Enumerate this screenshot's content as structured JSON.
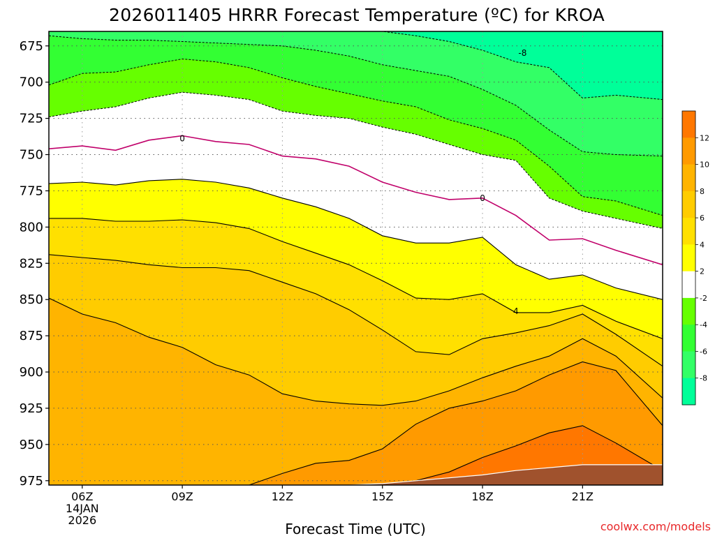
{
  "chart_data": {
    "type": "contour",
    "title": "2026011405 HRRR Forecast Temperature (ºC) for KROA",
    "xlabel": "Forecast Time (UTC)",
    "ylabel": "",
    "credit": "coolwx.com/models",
    "x_range_hours": [
      5.0,
      23.4
    ],
    "y_range_hpa": [
      665,
      978
    ],
    "y_ticks": [
      675,
      700,
      725,
      750,
      775,
      800,
      825,
      850,
      875,
      900,
      925,
      950,
      975
    ],
    "x_ticks": [
      {
        "hour": 6,
        "label": "06Z",
        "date": "14JAN",
        "year": "2026"
      },
      {
        "hour": 9,
        "label": "09Z"
      },
      {
        "hour": 12,
        "label": "12Z"
      },
      {
        "hour": 15,
        "label": "15Z"
      },
      {
        "hour": 18,
        "label": "18Z"
      },
      {
        "hour": 21,
        "label": "21Z"
      }
    ],
    "times": [
      5,
      6,
      7,
      8,
      9,
      10,
      11,
      12,
      13,
      14,
      15,
      16,
      17,
      18,
      19,
      20,
      21,
      22,
      23.4
    ],
    "bands": [
      {
        "range": "-10 to -8",
        "color": "#00ff99"
      },
      {
        "range": "-8 to -6",
        "color": "#33ff66"
      },
      {
        "range": "-6 to -4",
        "color": "#33ff33"
      },
      {
        "range": "-4 to -2",
        "color": "#66ff00"
      },
      {
        "range": "-2 to 2",
        "color": "#ffffff"
      },
      {
        "range": "2 to 4",
        "color": "#ffff00"
      },
      {
        "range": "4 to 6",
        "color": "#ffe000"
      },
      {
        "range": "6 to 8",
        "color": "#ffcc00"
      },
      {
        "range": "8 to 10",
        "color": "#ffb400"
      },
      {
        "range": "10 to 12",
        "color": "#ff9a00"
      },
      {
        "range": "12 to 14",
        "color": "#ff7700"
      }
    ],
    "isotherms_hpa": {
      "-8": [
        655,
        655,
        655,
        655,
        655,
        655,
        655,
        655,
        655,
        660,
        665,
        668,
        672,
        678,
        686,
        690,
        711,
        709,
        712
      ],
      "-6": [
        668,
        670,
        671,
        671,
        672,
        673,
        674,
        675,
        678,
        682,
        688,
        692,
        696,
        705,
        716,
        733,
        748,
        750,
        751
      ],
      "-4": [
        702,
        694,
        693,
        688,
        684,
        686,
        690,
        697,
        703,
        708,
        713,
        717,
        726,
        732,
        740,
        758,
        779,
        782,
        792
      ],
      "-2": [
        724,
        720,
        717,
        711,
        707,
        709,
        712,
        720,
        723,
        725,
        731,
        736,
        743,
        750,
        754,
        780,
        789,
        794,
        801
      ],
      "0": [
        746,
        744,
        747,
        740,
        737,
        741,
        743,
        751,
        753,
        758,
        769,
        776,
        781,
        780,
        792,
        809,
        808,
        816,
        826
      ],
      "2": [
        770,
        769,
        771,
        768,
        767,
        769,
        773,
        780,
        786,
        794,
        806,
        811,
        811,
        807,
        826,
        836,
        833,
        842,
        850
      ],
      "4": [
        794,
        794,
        796,
        796,
        795,
        797,
        801,
        810,
        818,
        826,
        837,
        849,
        850,
        846,
        859,
        859,
        854,
        865,
        877
      ],
      "6": [
        819,
        821,
        823,
        826,
        828,
        828,
        830,
        838,
        846,
        857,
        871,
        886,
        888,
        877,
        873,
        868,
        860,
        874,
        896
      ],
      "8": [
        849,
        860,
        866,
        876,
        883,
        895,
        902,
        915,
        920,
        922,
        923,
        920,
        913,
        904,
        896,
        889,
        877,
        889,
        918
      ],
      "10": [
        978,
        978,
        978,
        978,
        978,
        978,
        978,
        970,
        963,
        961,
        953,
        936,
        925,
        920,
        913,
        902,
        893,
        899,
        937
      ],
      "12": [
        978,
        978,
        978,
        978,
        978,
        978,
        978,
        978,
        978,
        978,
        978,
        975,
        969,
        959,
        951,
        942,
        937,
        949,
        968
      ]
    },
    "terrain_hpa": [
      978,
      978,
      978,
      978,
      978,
      978,
      978,
      978,
      978,
      978,
      977,
      975,
      973,
      971,
      968,
      966,
      964,
      964,
      964
    ],
    "contour_labels": [
      {
        "value": -8,
        "text": "-8",
        "hour": 19.2,
        "hpa": 680
      },
      {
        "value": 0,
        "text": "0",
        "hour": 9.0,
        "hpa": 739
      },
      {
        "value": 0,
        "text": "0",
        "hour": 18.0,
        "hpa": 780
      },
      {
        "value": 4,
        "text": "4",
        "hour": 19.0,
        "hpa": 858
      }
    ],
    "colorbar_ticks": [
      "12",
      "10",
      "8",
      "6",
      "4",
      "2",
      "-2",
      "-4",
      "-6",
      "-8"
    ],
    "colors": {
      "dashed": "#000000",
      "zero_line": "#c0006a",
      "terrain": "#a0522d",
      "credit": "#e8282a"
    }
  }
}
